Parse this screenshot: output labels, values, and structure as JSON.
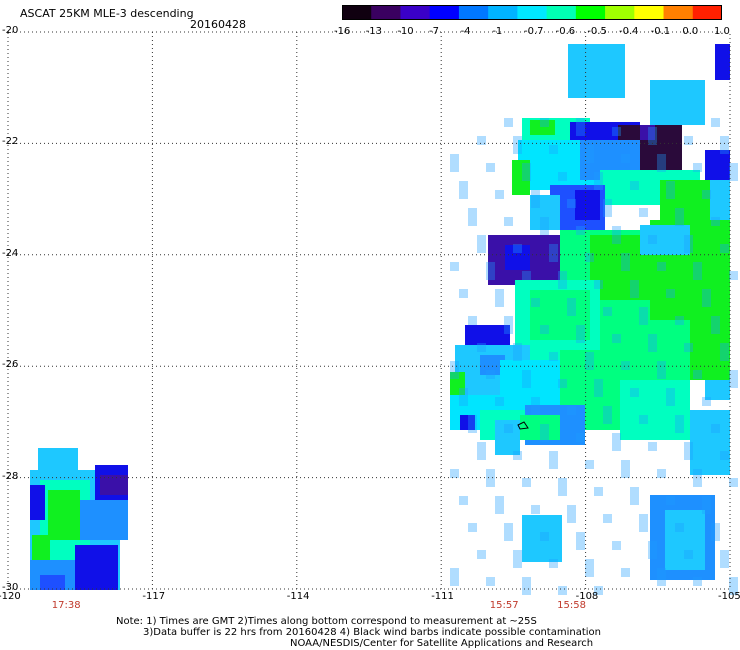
{
  "header": {
    "title": "ASCAT 25KM MLE-3 descending",
    "date": "20160428"
  },
  "colorbar": {
    "labels": [
      "-16",
      "-13",
      "-10",
      "-7",
      "-4",
      "-1",
      "-0.7",
      "-0.6",
      "-0.5",
      "-0.4",
      "-0.1",
      "0.0",
      "1.0"
    ],
    "colors": [
      "#100010",
      "#3a0060",
      "#3a00c8",
      "#0000ff",
      "#0078ff",
      "#00b4ff",
      "#00e8ff",
      "#00ffb4",
      "#00ff00",
      "#a0ff00",
      "#ffff00",
      "#ff8000",
      "#ff2000"
    ]
  },
  "map": {
    "x_ticks": [
      "-120",
      "-117",
      "-114",
      "-111",
      "-108",
      "-105"
    ],
    "y_ticks": [
      "-20",
      "-22",
      "-24",
      "-26",
      "-28",
      "-30"
    ],
    "x_range": [
      -120,
      -105
    ],
    "y_range": [
      -20,
      -30
    ],
    "grid": "dotted",
    "times": [
      {
        "label": "17:38",
        "lon": -118.8
      },
      {
        "label": "15:57",
        "lon": -109.7
      },
      {
        "label": "15:58",
        "lon": -108.3
      }
    ]
  },
  "note": {
    "line1": "Note: 1) Times are GMT 2)Times along bottom correspond to measurement at ~25S",
    "line2": "3)Data buffer is 22 hrs from 20160428 4) Black wind barbs indicate possible contamination",
    "line3": "NOAA/NESDIS/Center for Satellite Applications and Research"
  }
}
